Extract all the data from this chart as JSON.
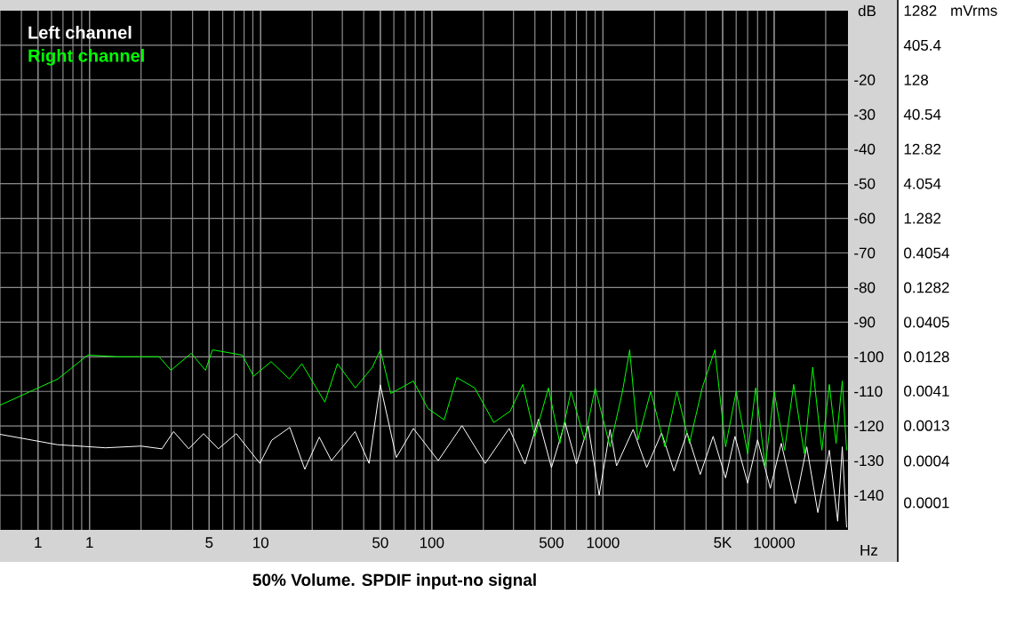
{
  "chart_data": {
    "type": "line",
    "xlabel": "Hz",
    "ylabel": "mVrms",
    "y2label": "dB",
    "annotations": [
      "50% Volume. SPDIF input-no signal"
    ],
    "xlim": [
      0.3,
      27000
    ],
    "y2lim": [
      -150,
      0
    ],
    "ylim": [
      4.054e-05,
      1282
    ],
    "xticks": [
      {
        "value": 0.5,
        "label": "1"
      },
      {
        "value": 1,
        "label": "1"
      },
      {
        "value": 5,
        "label": "5"
      },
      {
        "value": 10,
        "label": "10"
      },
      {
        "value": 50,
        "label": "50"
      },
      {
        "value": 100,
        "label": "100"
      },
      {
        "value": 500,
        "label": "500"
      },
      {
        "value": 1000,
        "label": "1000"
      },
      {
        "value": 5000,
        "label": "5K"
      },
      {
        "value": 10000,
        "label": "10000"
      }
    ],
    "y2ticks": [
      {
        "value": -10,
        "label": null
      },
      {
        "value": -20,
        "label": "-20"
      },
      {
        "value": -30,
        "label": "-30"
      },
      {
        "value": -40,
        "label": "-40"
      },
      {
        "value": -50,
        "label": "-50"
      },
      {
        "value": -60,
        "label": "-60"
      },
      {
        "value": -70,
        "label": "-70"
      },
      {
        "value": -80,
        "label": "-80"
      },
      {
        "value": -90,
        "label": "-90"
      },
      {
        "value": -100,
        "label": "-100"
      },
      {
        "value": -110,
        "label": "-110"
      },
      {
        "value": -120,
        "label": "-120"
      },
      {
        "value": -130,
        "label": "-130"
      },
      {
        "value": -140,
        "label": "-140"
      }
    ],
    "yticks": [
      {
        "value": 1282,
        "label": "1282"
      },
      {
        "value": 405.4,
        "label": "405.4"
      },
      {
        "value": 128,
        "label": "128"
      },
      {
        "value": 40.54,
        "label": "40.54"
      },
      {
        "value": 12.82,
        "label": "12.82"
      },
      {
        "value": 4.054,
        "label": "4.054"
      },
      {
        "value": 1.282,
        "label": "1.282"
      },
      {
        "value": 0.4054,
        "label": "0.4054"
      },
      {
        "value": 0.1282,
        "label": "0.1282"
      },
      {
        "value": 0.0405,
        "label": "0.0405"
      },
      {
        "value": 0.0128,
        "label": "0.0128"
      },
      {
        "value": 0.0041,
        "label": "0.0041"
      },
      {
        "value": 0.0013,
        "label": "0.0013"
      },
      {
        "value": 0.0004,
        "label": "0.0004"
      },
      {
        "value": 0.0001,
        "label": "0.0001"
      }
    ],
    "log": "xy",
    "grid": true,
    "legend": "top left",
    "series": [
      {
        "name": "Left channel",
        "color": "#ffffff",
        "axis": "y2",
        "x": [
          0.3,
          0.65,
          1.24,
          2.0,
          2.65,
          3.1,
          3.8,
          4.64,
          5.66,
          7.2,
          9.9,
          11.6,
          14.8,
          18.1,
          22,
          25.9,
          35.6,
          43,
          50,
          62,
          78,
          109,
          150,
          205,
          283,
          350,
          420,
          500,
          600,
          700,
          820,
          950,
          1100,
          1200,
          1500,
          1800,
          2200,
          2600,
          3100,
          3700,
          4400,
          5200,
          5900,
          7000,
          8000,
          9500,
          11000,
          13300,
          15500,
          18000,
          21000,
          23500,
          25000,
          26500
        ],
        "values": [
          -122.4,
          -125.4,
          -126.3,
          -125.8,
          -126.6,
          -121.6,
          -126.6,
          -122.2,
          -126.6,
          -122.2,
          -130.8,
          -124.1,
          -120.4,
          -132.5,
          -123.2,
          -130,
          -121.6,
          -130.8,
          -108.1,
          -129.1,
          -120.7,
          -130,
          -119.9,
          -130.8,
          -120.7,
          -131,
          -118,
          -132,
          -119,
          -131,
          -120,
          -140,
          -121,
          -131.5,
          -121,
          -132,
          -122,
          -133,
          -122,
          -134,
          -123,
          -135,
          -123,
          -136.5,
          -124,
          -138,
          -125,
          -142.4,
          -126,
          -145,
          -127,
          -147.5,
          -126,
          -149.3
        ]
      },
      {
        "name": "Right channel",
        "color": "#00ff00",
        "axis": "y2",
        "x": [
          0.3,
          0.654,
          0.977,
          1.46,
          2.55,
          2.99,
          3.93,
          4.76,
          5.23,
          7.8,
          9.1,
          11.5,
          14.7,
          17.4,
          23.7,
          28.1,
          35.7,
          45,
          50,
          57.6,
          78,
          95,
          118,
          140,
          178,
          230,
          287,
          340,
          400,
          480,
          560,
          650,
          780,
          900,
          1100,
          1300,
          1432,
          1600,
          1900,
          2300,
          2700,
          3200,
          3800,
          4500,
          5200,
          6000,
          7000,
          7800,
          8870,
          10000,
          11500,
          13000,
          15000,
          16800,
          19000,
          21000,
          23000,
          25000,
          26500
        ],
        "values": [
          -114,
          -106.4,
          -99.5,
          -100,
          -100,
          -103.9,
          -99,
          -103.9,
          -98,
          -99.5,
          -105.6,
          -101.4,
          -106.4,
          -102,
          -113.1,
          -102,
          -109,
          -103,
          -98,
          -110.6,
          -107,
          -115,
          -118.2,
          -106,
          -109,
          -119,
          -115.7,
          -108,
          -123,
          -109,
          -125,
          -110,
          -124,
          -109,
          -126,
          -110,
          -98,
          -124,
          -110,
          -126,
          -110,
          -125,
          -109,
          -98,
          -126,
          -110,
          -128,
          -109,
          -131.7,
          -110,
          -127,
          -108,
          -128,
          -103,
          -127,
          -108,
          -125,
          -107,
          -127
        ]
      }
    ]
  }
}
